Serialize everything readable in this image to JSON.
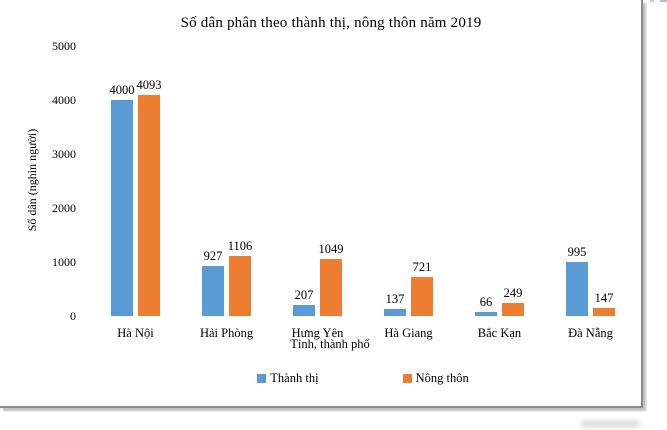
{
  "chart_data": {
    "type": "bar",
    "title": "Số dân phân theo thành thị, nông thôn năm 2019",
    "xlabel": "Tỉnh, thành phố",
    "ylabel": "Số dân (nghìn người)",
    "categories": [
      "Hà Nội",
      "Hải Phòng",
      "Hưng Yên",
      "Hà Giang",
      "Bắc Kạn",
      "Đà Nẵng"
    ],
    "series": [
      {
        "name": "Thành thị",
        "color": "#5B9BD5",
        "values": [
          4000,
          927,
          207,
          137,
          66,
          995
        ]
      },
      {
        "name": "Nông thôn",
        "color": "#ED7D31",
        "values": [
          4093,
          1106,
          1049,
          721,
          249,
          147
        ]
      }
    ],
    "ylim": [
      0,
      5000
    ],
    "yticks": [
      0,
      1000,
      2000,
      3000,
      4000,
      5000
    ],
    "grid": false,
    "axis_lines": false,
    "data_labels": true,
    "legend_position": "bottom"
  },
  "frame": {
    "border_color": "#8b8b8b",
    "selection_dash_color": "#b3bdd4"
  }
}
